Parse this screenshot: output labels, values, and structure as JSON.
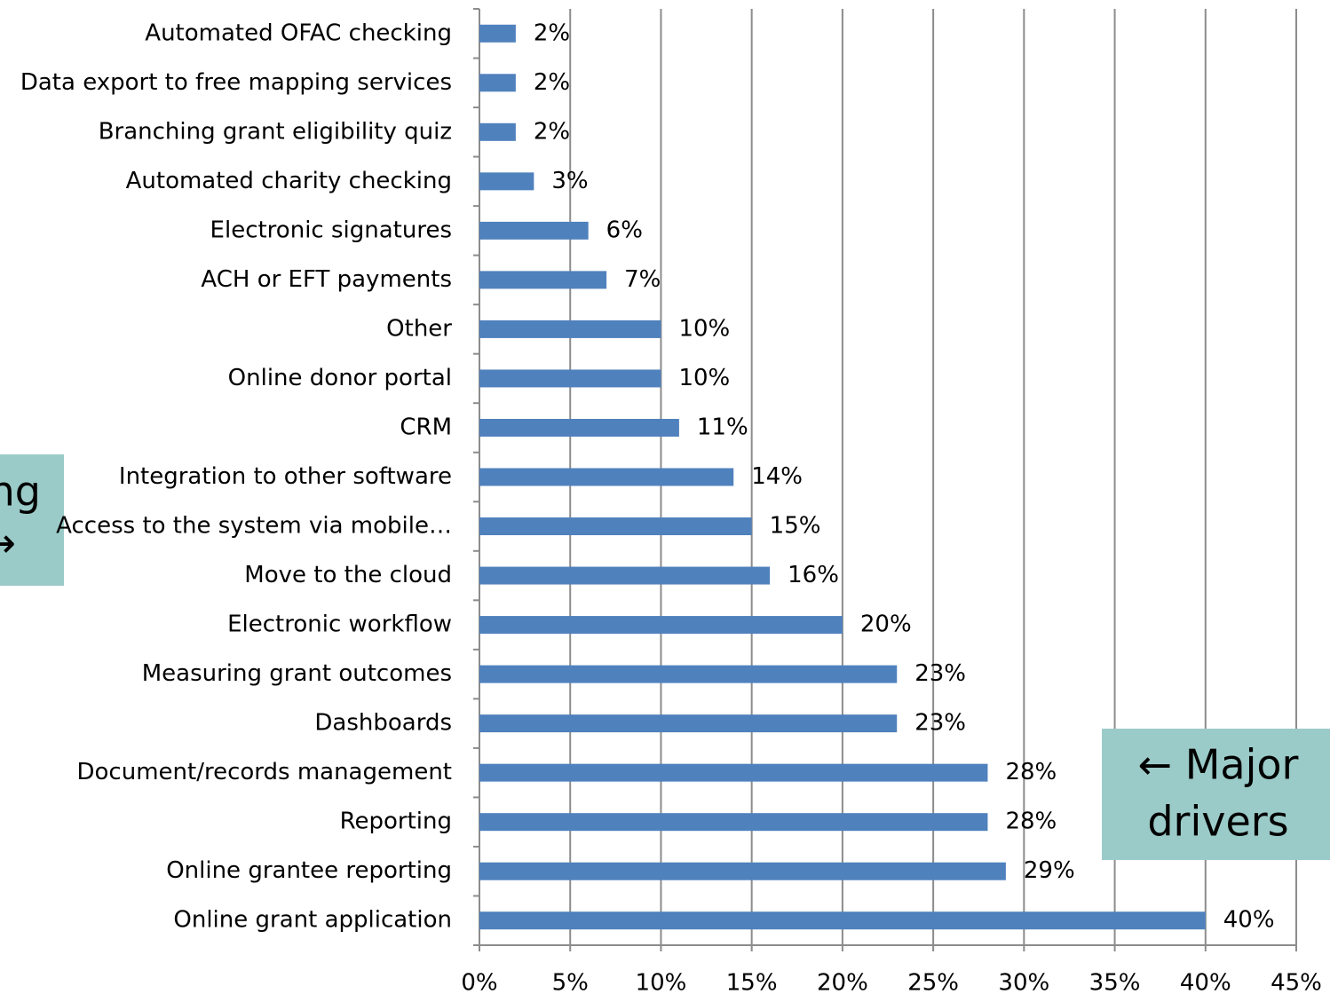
{
  "chart_data": {
    "type": "barh",
    "categories": [
      "Automated OFAC checking",
      "Data export to free mapping services",
      "Branching grant eligibility quiz",
      "Automated charity checking",
      "Electronic signatures",
      "ACH or EFT payments",
      "Other",
      "Online donor portal",
      "CRM",
      "Integration to other software",
      "Access to the system via mobile…",
      "Move to the cloud",
      "Electronic workflow",
      "Measuring grant outcomes",
      "Dashboards",
      "Document/records management",
      "Reporting",
      "Online grantee reporting",
      "Online grant application"
    ],
    "values": [
      2,
      2,
      2,
      3,
      6,
      7,
      10,
      10,
      11,
      14,
      15,
      16,
      20,
      23,
      23,
      28,
      28,
      29,
      40
    ],
    "value_labels": [
      "2%",
      "2%",
      "2%",
      "3%",
      "6%",
      "7%",
      "10%",
      "10%",
      "11%",
      "14%",
      "15%",
      "16%",
      "20%",
      "23%",
      "23%",
      "28%",
      "28%",
      "29%",
      "40%"
    ],
    "color": "#4f81bd",
    "xlim": [
      0,
      45
    ],
    "xticks": [
      {
        "value": 0,
        "label": "0%"
      },
      {
        "value": 5,
        "label": "5%"
      },
      {
        "value": 10,
        "label": "10%"
      },
      {
        "value": 15,
        "label": "15%"
      },
      {
        "value": 20,
        "label": "20%"
      },
      {
        "value": 25,
        "label": "25%"
      },
      {
        "value": 30,
        "label": "30%"
      },
      {
        "value": 35,
        "label": "35%"
      },
      {
        "value": 40,
        "label": "40%"
      },
      {
        "value": 45,
        "label": "45%"
      }
    ],
    "grid": true,
    "annotations": [
      [
        "ng",
        "→"
      ],
      [
        "← Major",
        "drivers"
      ]
    ]
  }
}
